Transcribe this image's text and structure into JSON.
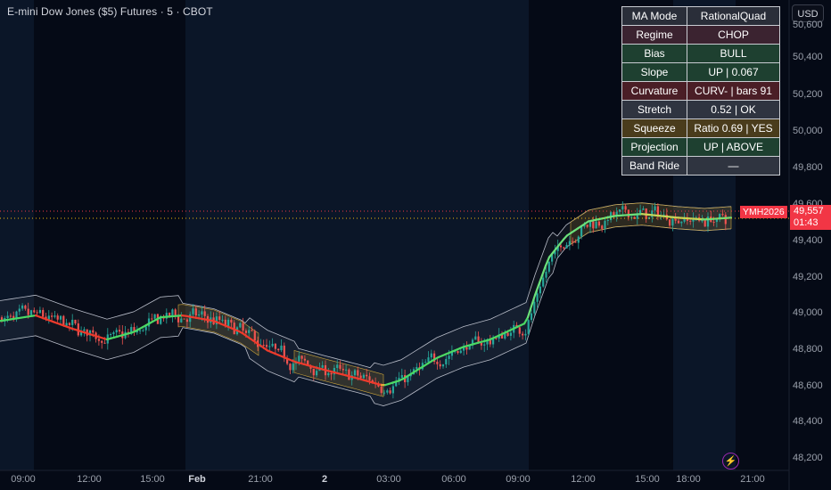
{
  "header": {
    "title": "E-mini Dow Jones ($5) Futures · 5 · CBOT"
  },
  "currency_button": "USD",
  "price_axis": {
    "ticks": [
      "50,600",
      "50,400",
      "50,200",
      "50,000",
      "49,800",
      "49,600",
      "49,400",
      "49,200",
      "49,000",
      "48,800",
      "48,600",
      "48,400",
      "48,200"
    ]
  },
  "time_axis": {
    "ticks": [
      "09:00",
      "12:00",
      "15:00",
      "Feb",
      "21:00",
      "2",
      "03:00",
      "06:00",
      "09:00",
      "12:00",
      "15:00",
      "18:00",
      "21:00"
    ]
  },
  "last_price": {
    "symbol": "YMH2026",
    "price": "49,557",
    "countdown": "01:43"
  },
  "stats_table": [
    {
      "key": "MA Mode",
      "value": "RationalQuad",
      "bg": "#2a2e39"
    },
    {
      "key": "Regime",
      "value": "CHOP",
      "bg": "#3b2330"
    },
    {
      "key": "Bias",
      "value": "BULL",
      "bg": "#1e4030"
    },
    {
      "key": "Slope",
      "value": "UP | 0.067",
      "bg": "#1e4030"
    },
    {
      "key": "Curvature",
      "value": "CURV- | bars 91",
      "bg": "#4a1e26"
    },
    {
      "key": "Stretch",
      "value": "0.52 | OK",
      "bg": "#2f3440"
    },
    {
      "key": "Squeeze",
      "value": "Ratio 0.69 | YES",
      "bg": "#4a3c1c"
    },
    {
      "key": "Projection",
      "value": "UP | ABOVE",
      "bg": "#1e4030"
    },
    {
      "key": "Band Ride",
      "value": "—",
      "bg": "#2f3440"
    }
  ],
  "colors": {
    "background": "#050a16",
    "session_shade": "#0b1628",
    "bull": "#26a69a",
    "bear": "#ef5350",
    "last_price": "#f23645",
    "ma_up": "#4caf50",
    "ma_down": "#f44336"
  },
  "chart_data": {
    "type": "candlestick",
    "ylim": [
      48150,
      50700
    ],
    "ma_line": [
      {
        "x": 0,
        "y": 48960
      },
      {
        "x": 40,
        "y": 48990
      },
      {
        "x": 80,
        "y": 48920
      },
      {
        "x": 120,
        "y": 48860
      },
      {
        "x": 150,
        "y": 48900
      },
      {
        "x": 180,
        "y": 48980
      },
      {
        "x": 205,
        "y": 48990
      },
      {
        "x": 240,
        "y": 48960
      },
      {
        "x": 270,
        "y": 48900
      },
      {
        "x": 300,
        "y": 48800
      },
      {
        "x": 330,
        "y": 48740
      },
      {
        "x": 360,
        "y": 48700
      },
      {
        "x": 400,
        "y": 48650
      },
      {
        "x": 430,
        "y": 48610
      },
      {
        "x": 450,
        "y": 48640
      },
      {
        "x": 470,
        "y": 48700
      },
      {
        "x": 490,
        "y": 48760
      },
      {
        "x": 520,
        "y": 48820
      },
      {
        "x": 550,
        "y": 48860
      },
      {
        "x": 590,
        "y": 48950
      },
      {
        "x": 600,
        "y": 49100
      },
      {
        "x": 615,
        "y": 49300
      },
      {
        "x": 635,
        "y": 49420
      },
      {
        "x": 660,
        "y": 49500
      },
      {
        "x": 690,
        "y": 49530
      },
      {
        "x": 720,
        "y": 49540
      },
      {
        "x": 760,
        "y": 49520
      },
      {
        "x": 790,
        "y": 49510
      },
      {
        "x": 820,
        "y": 49520
      }
    ],
    "band_width": 110
  }
}
